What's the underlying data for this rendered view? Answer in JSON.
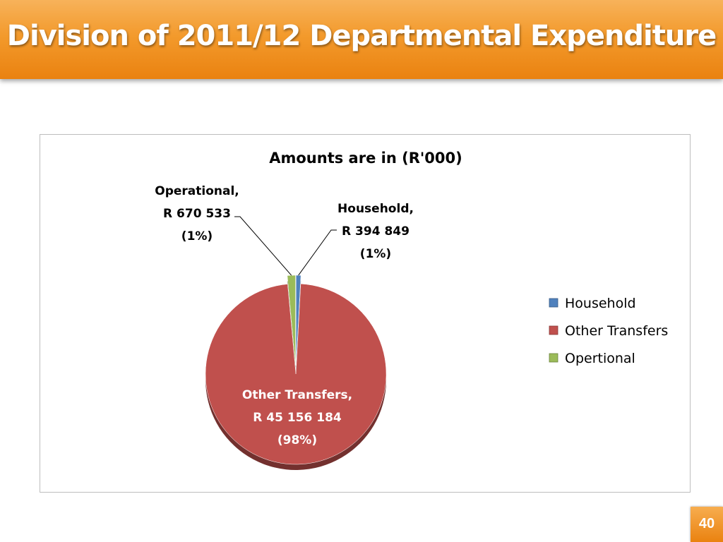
{
  "page": {
    "title": "Division of 2011/12 Departmental Expenditure",
    "slide_number": "40",
    "accent_color": "#f39a2c"
  },
  "chart_data": {
    "type": "pie",
    "title": "Amounts are in (R'000)",
    "legend_position": "right",
    "slices": [
      {
        "category": "Household",
        "legend": "Household",
        "value": 394849,
        "percent": "(1%)",
        "label_lines": [
          "Household,",
          "R 394 849",
          "(1%)"
        ],
        "color": "#4f81bd"
      },
      {
        "category": "Other Transfers",
        "legend": "Other Transfers",
        "value": 45156184,
        "percent": "(98%)",
        "label_lines": [
          "Other Transfers,",
          "R 45 156 184",
          "(98%)"
        ],
        "color": "#c0504d"
      },
      {
        "category": "Operational",
        "legend": "Opertional",
        "value": 670533,
        "percent": "(1%)",
        "label_lines": [
          "Operational,",
          "R 670 533",
          "(1%)"
        ],
        "color": "#9bbb59"
      }
    ]
  }
}
